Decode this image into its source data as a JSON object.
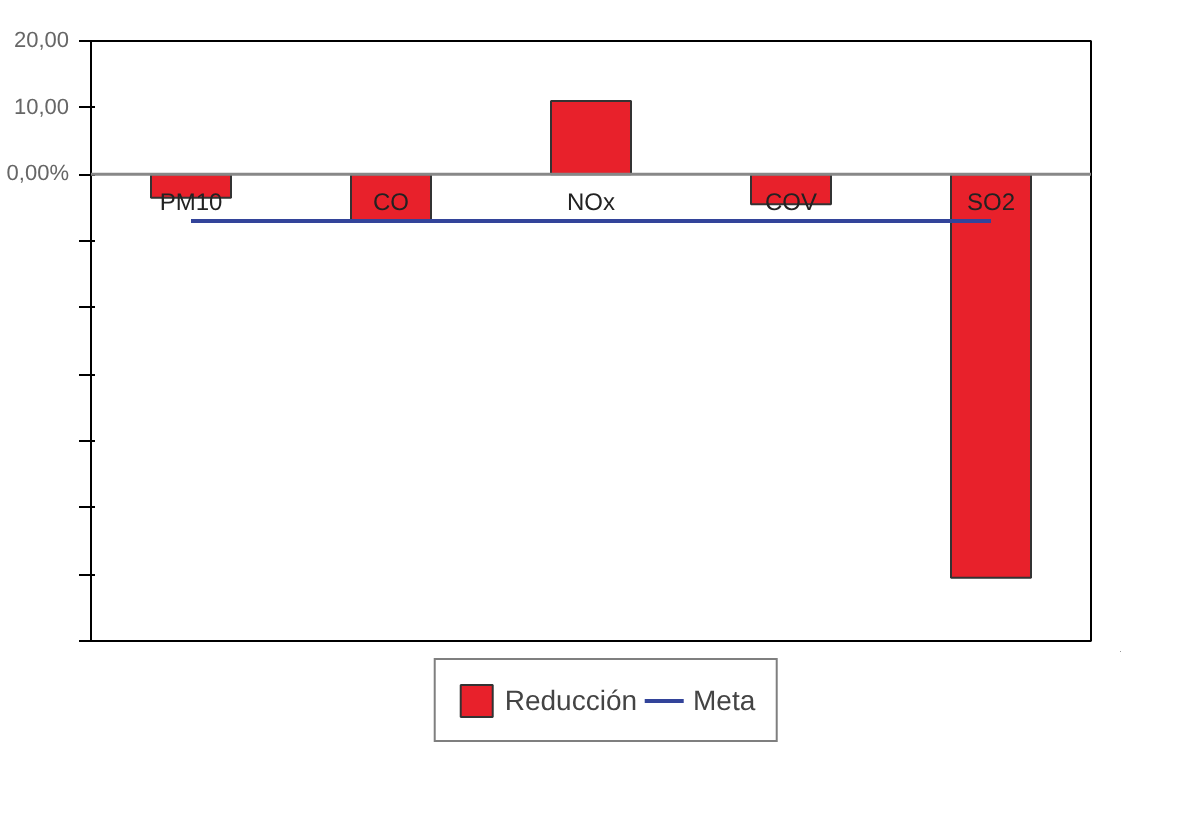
{
  "chart_data": {
    "type": "bar",
    "categories": [
      "PM10",
      "CO",
      "NOx",
      "COV",
      "SO2"
    ],
    "series": [
      {
        "name": "Reducción",
        "color": "#e8212b",
        "values": [
          -3.5,
          -7,
          11,
          -4.5,
          -60.5
        ]
      },
      {
        "name": "Meta",
        "type": "line",
        "color": "#33449a",
        "values": [
          -7,
          -7,
          -7,
          -7,
          -7
        ]
      }
    ],
    "ylim": [
      -70,
      20
    ],
    "yticks": [
      {
        "value": 20,
        "label": "20,00"
      },
      {
        "value": 10,
        "label": "10,00"
      },
      {
        "value": 0,
        "label": "0,00%"
      },
      {
        "value": -10,
        "label": null
      },
      {
        "value": -20,
        "label": null
      },
      {
        "value": -30,
        "label": null
      },
      {
        "value": -40,
        "label": null
      },
      {
        "value": -50,
        "label": null
      },
      {
        "value": -60,
        "label": null
      },
      {
        "value": -70,
        "label": null
      }
    ],
    "grid": false,
    "legend": "bottom"
  }
}
